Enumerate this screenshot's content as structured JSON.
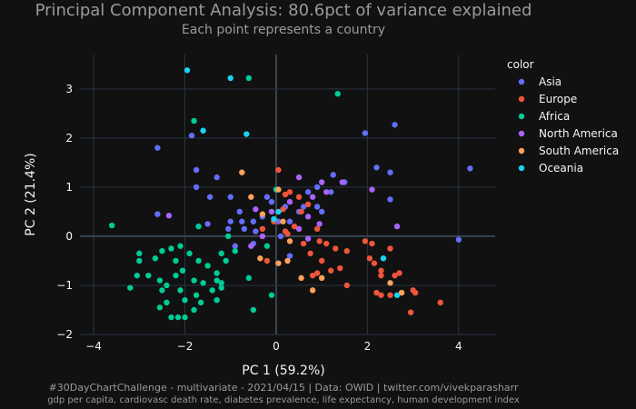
{
  "chart_data": {
    "type": "scatter",
    "title": "Principal Component Analysis: 80.6pct of variance explained",
    "subtitle": "Each point represents a country",
    "xlabel": "PC 1 (59.2%)",
    "ylabel": "PC 2 (21.4%)",
    "xlim": [
      -4.3,
      4.8
    ],
    "ylim": [
      -2.0,
      3.7
    ],
    "xticks": [
      -4,
      -2,
      0,
      2,
      4
    ],
    "yticks": [
      -2,
      -1,
      0,
      1,
      2,
      3
    ],
    "grid": true,
    "legend_title": "color",
    "legend_position": "right",
    "footer": [
      "#30DayChartChallenge - multivariate - 2021/04/15 | Data: OWID | twitter.com/vivekparasharr",
      "gdp per capita, cardiovasc death rate, diabetes prevalence, life expectancy, human development index"
    ],
    "series": [
      {
        "name": "Asia",
        "color": "#636efa",
        "points": [
          [
            4.25,
            1.38
          ],
          [
            2.6,
            2.27
          ],
          [
            1.95,
            2.1
          ],
          [
            2.2,
            1.4
          ],
          [
            2.5,
            1.3
          ],
          [
            2.5,
            0.75
          ],
          [
            4.0,
            -0.07
          ],
          [
            -2.6,
            1.8
          ],
          [
            -1.85,
            2.05
          ],
          [
            -1.75,
            1.35
          ],
          [
            -1.75,
            1.0
          ],
          [
            -1.3,
            1.2
          ],
          [
            -1.0,
            0.8
          ],
          [
            -0.8,
            0.5
          ],
          [
            -1.45,
            0.8
          ],
          [
            -2.6,
            0.45
          ],
          [
            -1.5,
            0.25
          ],
          [
            -1.0,
            0.3
          ],
          [
            -0.75,
            0.3
          ],
          [
            -0.3,
            0.4
          ],
          [
            -0.5,
            0.3
          ],
          [
            -0.1,
            0.7
          ],
          [
            0.2,
            0.6
          ],
          [
            0.5,
            0.5
          ],
          [
            0.3,
            0.3
          ],
          [
            0.7,
            0.9
          ],
          [
            0.9,
            0.6
          ],
          [
            1.0,
            0.5
          ],
          [
            1.2,
            0.9
          ],
          [
            1.5,
            1.1
          ],
          [
            -0.9,
            -0.2
          ],
          [
            -0.45,
            0.1
          ],
          [
            0.05,
            0.3
          ],
          [
            0.1,
            0.0
          ],
          [
            -0.5,
            -0.15
          ],
          [
            -0.7,
            0.15
          ],
          [
            0.3,
            -0.4
          ],
          [
            1.25,
            1.25
          ],
          [
            0.6,
            0.6
          ],
          [
            -0.2,
            0.8
          ],
          [
            -1.05,
            0.15
          ],
          [
            0.9,
            1.0
          ]
        ]
      },
      {
        "name": "Europe",
        "color": "#ef553b",
        "points": [
          [
            0.05,
            1.35
          ],
          [
            0.2,
            0.85
          ],
          [
            0.3,
            0.9
          ],
          [
            0.5,
            0.8
          ],
          [
            0.7,
            0.65
          ],
          [
            0.55,
            0.5
          ],
          [
            -0.05,
            0.3
          ],
          [
            0.4,
            0.2
          ],
          [
            0.2,
            0.1
          ],
          [
            0.9,
            0.15
          ],
          [
            0.6,
            -0.15
          ],
          [
            0.95,
            -0.1
          ],
          [
            1.1,
            -0.15
          ],
          [
            0.75,
            -0.35
          ],
          [
            1.0,
            -0.5
          ],
          [
            1.3,
            -0.25
          ],
          [
            1.55,
            -0.3
          ],
          [
            1.2,
            -0.7
          ],
          [
            0.8,
            -0.8
          ],
          [
            0.9,
            -0.75
          ],
          [
            1.55,
            -1.0
          ],
          [
            1.95,
            -0.1
          ],
          [
            2.1,
            -0.15
          ],
          [
            2.5,
            -0.25
          ],
          [
            2.15,
            -0.55
          ],
          [
            2.3,
            -0.7
          ],
          [
            2.3,
            -0.8
          ],
          [
            2.6,
            -0.8
          ],
          [
            2.7,
            -0.75
          ],
          [
            2.2,
            -1.15
          ],
          [
            2.3,
            -1.2
          ],
          [
            2.5,
            -1.2
          ],
          [
            3.0,
            -1.1
          ],
          [
            3.05,
            -1.15
          ],
          [
            2.95,
            -1.55
          ],
          [
            3.6,
            -1.35
          ],
          [
            -0.2,
            -0.5
          ],
          [
            0.25,
            0.05
          ],
          [
            1.4,
            -0.65
          ],
          [
            2.05,
            -0.45
          ],
          [
            -0.3,
            0.15
          ],
          [
            0.15,
            0.55
          ]
        ]
      },
      {
        "name": "Africa",
        "color": "#00cc96",
        "points": [
          [
            -3.6,
            0.22
          ],
          [
            -3.0,
            -0.35
          ],
          [
            -3.0,
            -0.5
          ],
          [
            -3.05,
            -0.8
          ],
          [
            -3.2,
            -1.05
          ],
          [
            -2.8,
            -0.8
          ],
          [
            -2.65,
            -0.45
          ],
          [
            -2.5,
            -0.3
          ],
          [
            -2.55,
            -0.9
          ],
          [
            -2.5,
            -1.1
          ],
          [
            -2.4,
            -1.0
          ],
          [
            -2.4,
            -1.35
          ],
          [
            -2.3,
            -0.25
          ],
          [
            -2.2,
            -0.5
          ],
          [
            -2.2,
            -0.8
          ],
          [
            -2.1,
            -0.2
          ],
          [
            -2.1,
            -1.1
          ],
          [
            -2.05,
            -0.7
          ],
          [
            -2.0,
            -1.3
          ],
          [
            -1.9,
            -0.35
          ],
          [
            -1.8,
            -0.9
          ],
          [
            -1.75,
            -1.2
          ],
          [
            -1.7,
            -0.5
          ],
          [
            -1.65,
            -1.35
          ],
          [
            -1.6,
            -0.95
          ],
          [
            -1.5,
            -0.6
          ],
          [
            -1.4,
            -1.1
          ],
          [
            -1.3,
            -1.3
          ],
          [
            -1.3,
            -0.9
          ],
          [
            -1.2,
            -0.95
          ],
          [
            -1.2,
            -1.05
          ],
          [
            -1.2,
            -0.35
          ],
          [
            -1.1,
            -0.5
          ],
          [
            -1.05,
            0.0
          ],
          [
            -0.9,
            -0.3
          ],
          [
            -2.0,
            -1.65
          ],
          [
            -2.3,
            -1.65
          ],
          [
            -2.55,
            -1.45
          ],
          [
            -2.15,
            -1.65
          ],
          [
            -1.8,
            -1.5
          ],
          [
            -1.3,
            -0.75
          ],
          [
            -0.5,
            -1.5
          ],
          [
            1.35,
            2.9
          ],
          [
            -0.6,
            3.22
          ],
          [
            -1.8,
            2.35
          ],
          [
            -1.7,
            0.2
          ],
          [
            0.0,
            0.95
          ],
          [
            -0.2,
            -0.2
          ],
          [
            -0.1,
            -1.2
          ],
          [
            -0.6,
            -0.85
          ]
        ]
      },
      {
        "name": "North America",
        "color": "#ab63fa",
        "points": [
          [
            -2.35,
            0.42
          ],
          [
            0.5,
            1.2
          ],
          [
            1.0,
            1.1
          ],
          [
            1.1,
            0.9
          ],
          [
            0.8,
            0.8
          ],
          [
            0.3,
            0.7
          ],
          [
            -0.1,
            0.5
          ],
          [
            -0.45,
            0.55
          ],
          [
            0.5,
            0.15
          ],
          [
            0.7,
            -0.05
          ],
          [
            -0.3,
            0.0
          ],
          [
            1.45,
            1.1
          ],
          [
            0.95,
            0.25
          ],
          [
            2.1,
            0.95
          ],
          [
            2.65,
            0.2
          ],
          [
            0.7,
            0.4
          ],
          [
            -0.55,
            -0.2
          ]
        ]
      },
      {
        "name": "South America",
        "color": "#ffa15a",
        "points": [
          [
            -0.75,
            1.3
          ],
          [
            -0.55,
            0.8
          ],
          [
            -0.3,
            0.45
          ],
          [
            0.05,
            0.95
          ],
          [
            0.15,
            0.3
          ],
          [
            0.3,
            -0.1
          ],
          [
            0.25,
            -0.5
          ],
          [
            0.05,
            -0.55
          ],
          [
            -0.35,
            -0.45
          ],
          [
            0.55,
            -0.85
          ],
          [
            0.8,
            -1.1
          ],
          [
            1.0,
            -0.85
          ],
          [
            2.5,
            -0.95
          ],
          [
            2.75,
            -1.15
          ]
        ]
      },
      {
        "name": "Oceania",
        "color": "#19d3f3",
        "points": [
          [
            -1.95,
            3.38
          ],
          [
            -1.0,
            3.22
          ],
          [
            -1.6,
            2.15
          ],
          [
            -0.65,
            2.08
          ],
          [
            2.35,
            -0.45
          ],
          [
            2.65,
            -1.2
          ],
          [
            0.05,
            0.5
          ],
          [
            -0.05,
            0.35
          ]
        ]
      }
    ]
  }
}
